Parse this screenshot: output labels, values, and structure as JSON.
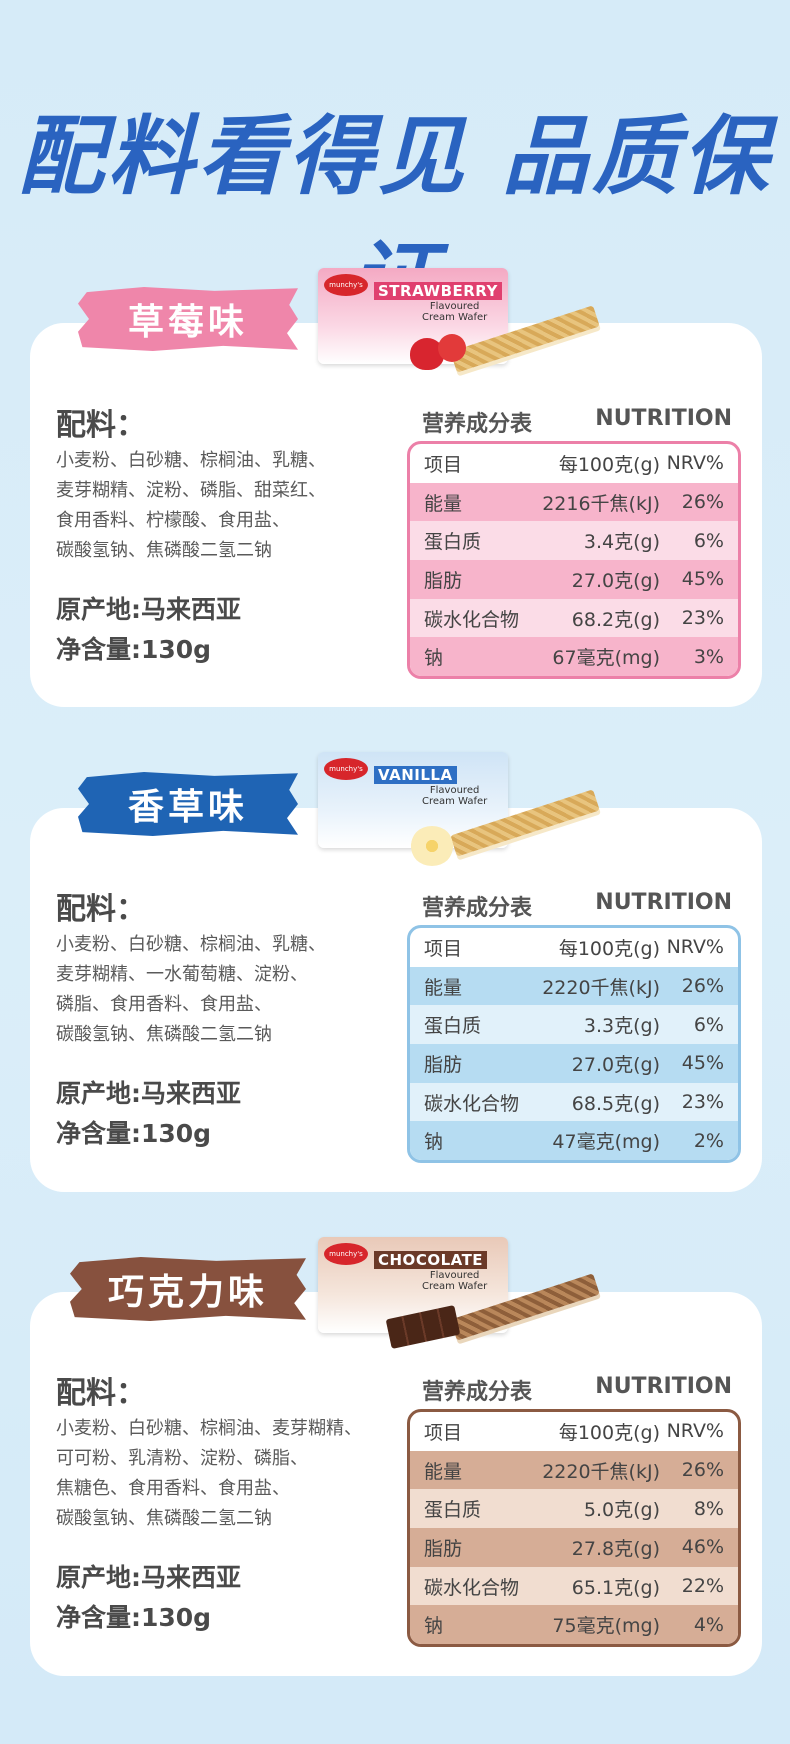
{
  "headline": "配料看得见 品质保证",
  "common": {
    "ingredients_title": "配料：",
    "nutrition_title": "营养成分表",
    "nutrition_en": "NUTRITION",
    "origin": "原产地:马来西亚",
    "net": "净含量:130g",
    "header_cols": [
      "项目",
      "每100克(g)",
      "NRV%"
    ]
  },
  "colors": {
    "headline": "#2a63c0",
    "strawberry": "#ef86aa",
    "vanilla": "#1f64b4",
    "chocolate": "#87513e"
  },
  "sections": [
    {
      "tag": "草莓味",
      "pack_logo": "munchy's",
      "pack_brand": "STRAWBERRY",
      "pack_sub1": "Flavoured",
      "pack_sub2": "Cream Wafer",
      "ingredients": [
        "小麦粉、白砂糖、棕榈油、乳糖、",
        "麦芽糊精、淀粉、磷脂、甜菜红、",
        "食用香料、柠檬酸、食用盐、",
        "碳酸氢钠、焦磷酸二氢二钠"
      ],
      "rows": [
        [
          "能量",
          "2216千焦(kJ)",
          "26%"
        ],
        [
          "蛋白质",
          "3.4克(g)",
          "6%"
        ],
        [
          "脂肪",
          "27.0克(g)",
          "45%"
        ],
        [
          "碳水化合物",
          "68.2克(g)",
          "23%"
        ],
        [
          "钠",
          "67毫克(mg)",
          "3%"
        ]
      ]
    },
    {
      "tag": "香草味",
      "pack_logo": "munchy's",
      "pack_brand": "VANILLA",
      "pack_sub1": "Flavoured",
      "pack_sub2": "Cream Wafer",
      "ingredients": [
        "小麦粉、白砂糖、棕榈油、乳糖、",
        "麦芽糊精、一水葡萄糖、淀粉、",
        "磷脂、食用香料、食用盐、",
        "碳酸氢钠、焦磷酸二氢二钠"
      ],
      "rows": [
        [
          "能量",
          "2220千焦(kJ)",
          "26%"
        ],
        [
          "蛋白质",
          "3.3克(g)",
          "6%"
        ],
        [
          "脂肪",
          "27.0克(g)",
          "45%"
        ],
        [
          "碳水化合物",
          "68.5克(g)",
          "23%"
        ],
        [
          "钠",
          "47毫克(mg)",
          "2%"
        ]
      ]
    },
    {
      "tag": "巧克力味",
      "pack_logo": "munchy's",
      "pack_brand": "CHOCOLATE",
      "pack_sub1": "Flavoured",
      "pack_sub2": "Cream Wafer",
      "ingredients": [
        "小麦粉、白砂糖、棕榈油、麦芽糊精、",
        "可可粉、乳清粉、淀粉、磷脂、",
        "焦糖色、食用香料、食用盐、",
        "碳酸氢钠、焦磷酸二氢二钠"
      ],
      "rows": [
        [
          "能量",
          "2220千焦(kJ)",
          "26%"
        ],
        [
          "蛋白质",
          "5.0克(g)",
          "8%"
        ],
        [
          "脂肪",
          "27.8克(g)",
          "46%"
        ],
        [
          "碳水化合物",
          "65.1克(g)",
          "22%"
        ],
        [
          "钠",
          "75毫克(mg)",
          "4%"
        ]
      ]
    }
  ]
}
